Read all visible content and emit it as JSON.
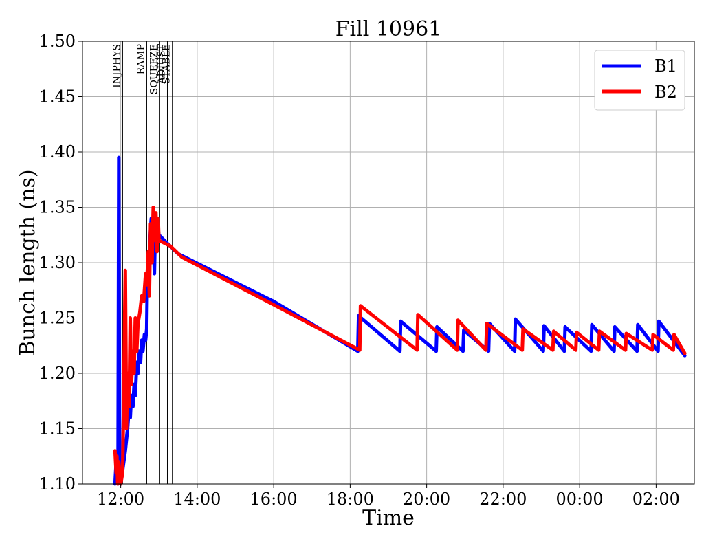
{
  "chart_data": {
    "type": "line",
    "title": "Fill 10961",
    "xlabel": "Time",
    "ylabel": "Bunch length (ns)",
    "ylim": [
      1.1,
      1.5
    ],
    "xlim_hours": [
      11.0,
      27.0
    ],
    "grid": true,
    "legend_position": "top-right",
    "y_ticks": [
      "1.10",
      "1.15",
      "1.20",
      "1.25",
      "1.30",
      "1.35",
      "1.40",
      "1.45",
      "1.50"
    ],
    "x_ticks": [
      {
        "hour": 12,
        "label": "12:00"
      },
      {
        "hour": 14,
        "label": "14:00"
      },
      {
        "hour": 16,
        "label": "16:00"
      },
      {
        "hour": 18,
        "label": "18:00"
      },
      {
        "hour": 20,
        "label": "20:00"
      },
      {
        "hour": 22,
        "label": "22:00"
      },
      {
        "hour": 24,
        "label": "00:00"
      },
      {
        "hour": 26,
        "label": "02:00"
      }
    ],
    "phases": [
      {
        "label": "INJPHYS",
        "hour": 12.05
      },
      {
        "label": "RAMP",
        "hour": 12.68
      },
      {
        "label": "SQUEEZE",
        "hour": 13.02
      },
      {
        "label": "ADJUST",
        "hour": 13.22
      },
      {
        "label": "STABLE",
        "hour": 13.35
      }
    ],
    "series": [
      {
        "name": "B1",
        "color": "#0000ff",
        "points": [
          [
            11.85,
            1.1
          ],
          [
            11.88,
            1.12
          ],
          [
            11.9,
            1.11
          ],
          [
            11.92,
            1.13
          ],
          [
            11.93,
            1.1
          ],
          [
            11.95,
            1.395
          ],
          [
            11.97,
            1.11
          ],
          [
            12.0,
            1.1
          ],
          [
            12.08,
            1.12
          ],
          [
            12.12,
            1.13
          ],
          [
            12.18,
            1.15
          ],
          [
            12.22,
            1.17
          ],
          [
            12.25,
            1.16
          ],
          [
            12.28,
            1.18
          ],
          [
            12.32,
            1.17
          ],
          [
            12.35,
            1.19
          ],
          [
            12.38,
            1.18
          ],
          [
            12.42,
            1.21
          ],
          [
            12.45,
            1.2
          ],
          [
            12.48,
            1.22
          ],
          [
            12.52,
            1.21
          ],
          [
            12.55,
            1.23
          ],
          [
            12.58,
            1.22
          ],
          [
            12.62,
            1.235
          ],
          [
            12.65,
            1.23
          ],
          [
            12.68,
            1.24
          ],
          [
            12.7,
            1.3
          ],
          [
            12.72,
            1.28
          ],
          [
            12.75,
            1.31
          ],
          [
            12.78,
            1.33
          ],
          [
            12.8,
            1.34
          ],
          [
            12.82,
            1.32
          ],
          [
            12.85,
            1.335
          ],
          [
            12.88,
            1.29
          ],
          [
            12.9,
            1.325
          ],
          [
            12.93,
            1.31
          ],
          [
            12.96,
            1.335
          ],
          [
            13.0,
            1.325
          ],
          [
            13.2,
            1.318
          ],
          [
            13.5,
            1.308
          ],
          [
            16.0,
            1.265
          ],
          [
            18.2,
            1.22
          ],
          [
            18.22,
            1.252
          ],
          [
            19.3,
            1.22
          ],
          [
            19.32,
            1.247
          ],
          [
            20.25,
            1.22
          ],
          [
            20.27,
            1.242
          ],
          [
            20.95,
            1.22
          ],
          [
            20.97,
            1.239
          ],
          [
            21.62,
            1.22
          ],
          [
            21.64,
            1.245
          ],
          [
            22.3,
            1.22
          ],
          [
            22.32,
            1.249
          ],
          [
            23.05,
            1.22
          ],
          [
            23.07,
            1.243
          ],
          [
            23.6,
            1.22
          ],
          [
            23.62,
            1.242
          ],
          [
            24.3,
            1.22
          ],
          [
            24.32,
            1.244
          ],
          [
            24.9,
            1.22
          ],
          [
            24.92,
            1.242
          ],
          [
            25.5,
            1.22
          ],
          [
            25.52,
            1.244
          ],
          [
            26.05,
            1.22
          ],
          [
            26.07,
            1.247
          ],
          [
            26.75,
            1.216
          ]
        ]
      },
      {
        "name": "B2",
        "color": "#ff0000",
        "points": [
          [
            11.85,
            1.13
          ],
          [
            11.88,
            1.11
          ],
          [
            11.9,
            1.125
          ],
          [
            11.92,
            1.1
          ],
          [
            11.95,
            1.12
          ],
          [
            12.0,
            1.1
          ],
          [
            12.05,
            1.11
          ],
          [
            12.12,
            1.293
          ],
          [
            12.15,
            1.15
          ],
          [
            12.18,
            1.2
          ],
          [
            12.22,
            1.17
          ],
          [
            12.25,
            1.25
          ],
          [
            12.28,
            1.19
          ],
          [
            12.32,
            1.22
          ],
          [
            12.35,
            1.2
          ],
          [
            12.38,
            1.25
          ],
          [
            12.42,
            1.22
          ],
          [
            12.45,
            1.245
          ],
          [
            12.5,
            1.255
          ],
          [
            12.55,
            1.27
          ],
          [
            12.6,
            1.265
          ],
          [
            12.65,
            1.29
          ],
          [
            12.68,
            1.28
          ],
          [
            12.72,
            1.31
          ],
          [
            12.75,
            1.27
          ],
          [
            12.78,
            1.335
          ],
          [
            12.82,
            1.3
          ],
          [
            12.85,
            1.35
          ],
          [
            12.88,
            1.32
          ],
          [
            12.92,
            1.345
          ],
          [
            12.95,
            1.31
          ],
          [
            12.98,
            1.34
          ],
          [
            13.0,
            1.32
          ],
          [
            13.3,
            1.315
          ],
          [
            13.6,
            1.305
          ],
          [
            16.0,
            1.262
          ],
          [
            18.25,
            1.221
          ],
          [
            18.27,
            1.261
          ],
          [
            19.75,
            1.221
          ],
          [
            19.77,
            1.253
          ],
          [
            20.8,
            1.221
          ],
          [
            20.82,
            1.248
          ],
          [
            21.55,
            1.221
          ],
          [
            21.57,
            1.245
          ],
          [
            22.5,
            1.221
          ],
          [
            22.52,
            1.24
          ],
          [
            23.3,
            1.221
          ],
          [
            23.32,
            1.238
          ],
          [
            23.9,
            1.221
          ],
          [
            23.92,
            1.237
          ],
          [
            24.5,
            1.221
          ],
          [
            24.52,
            1.238
          ],
          [
            25.2,
            1.221
          ],
          [
            25.22,
            1.236
          ],
          [
            25.9,
            1.221
          ],
          [
            25.92,
            1.235
          ],
          [
            26.45,
            1.221
          ],
          [
            26.47,
            1.235
          ],
          [
            26.75,
            1.218
          ]
        ]
      }
    ]
  }
}
